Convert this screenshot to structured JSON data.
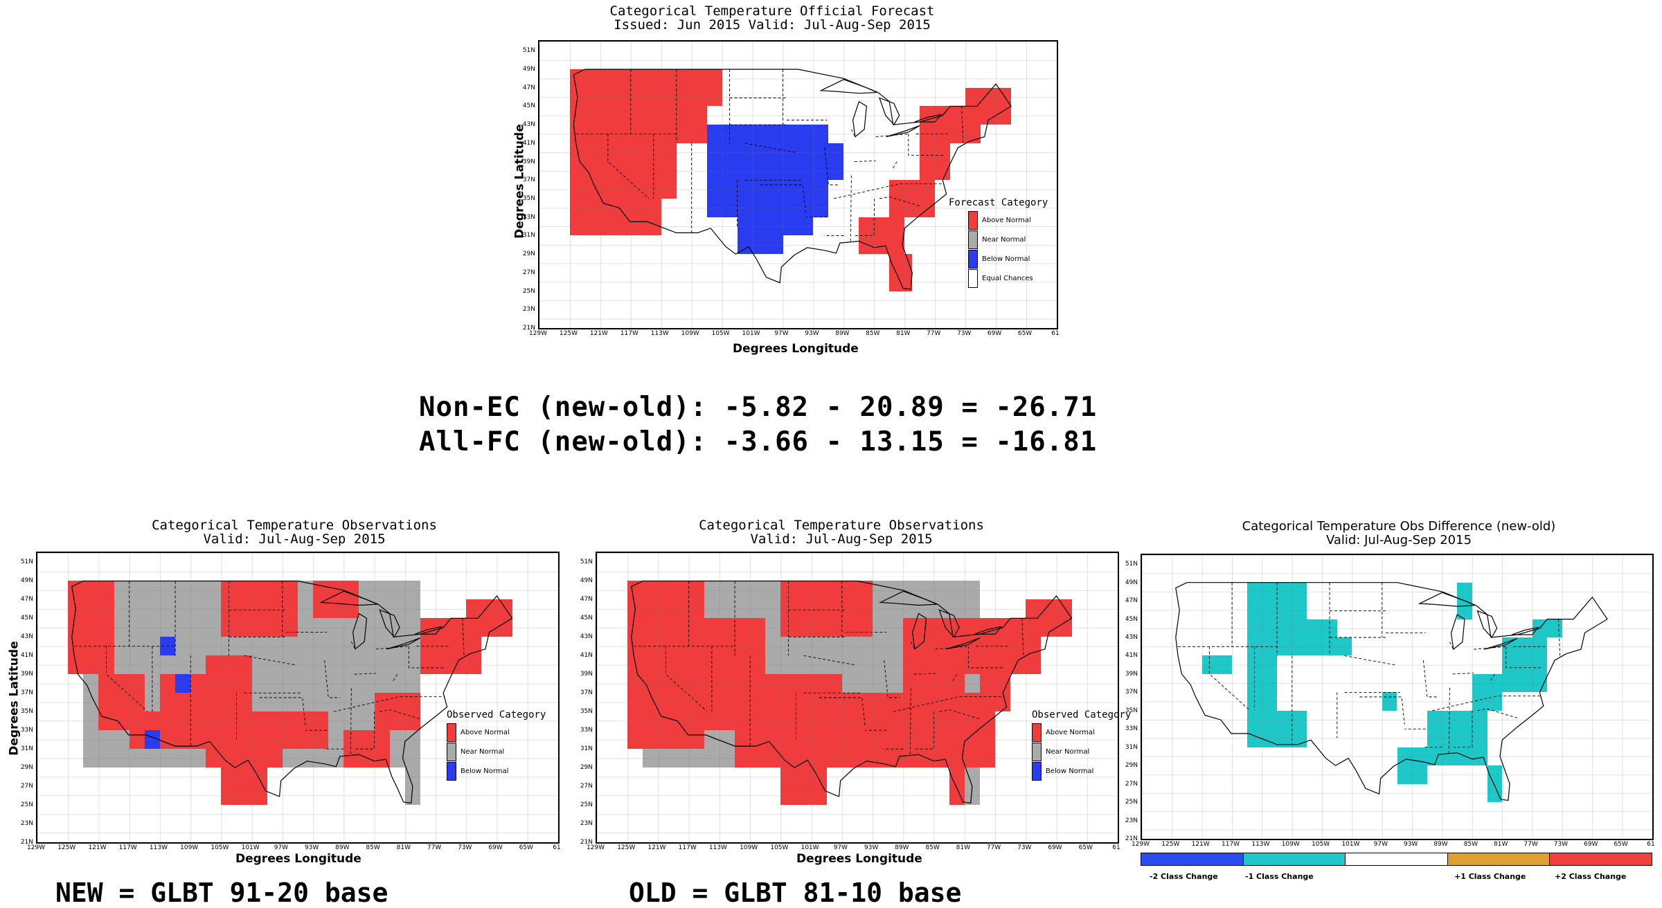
{
  "top_panel": {
    "title": "Categorical Temperature Official Forecast",
    "subtitle": "Issued: Jun 2015 Valid: Jul-Aug-Sep 2015",
    "xlabel": "Degrees Longitude",
    "ylabel": "Degrees Latitude",
    "legend_title": "Forecast Category",
    "legend": [
      "Above Normal",
      "Near Normal",
      "Below Normal",
      "Equal Chances"
    ]
  },
  "stats": {
    "line1": "Non-EC (new-old): -5.82 - 20.89 = -26.71",
    "line2": "All-FC (new-old): -3.66 - 13.15 = -16.81"
  },
  "left_panel": {
    "title": "Categorical Temperature Observations",
    "subtitle": "Valid: Jul-Aug-Sep 2015",
    "xlabel": "Degrees Longitude",
    "ylabel": "Degrees Latitude",
    "legend_title": "Observed Category",
    "legend": [
      "Above Normal",
      "Near Normal",
      "Below Normal"
    ],
    "footnote": "NEW = GLBT 91-20 base"
  },
  "mid_panel": {
    "title": "Categorical Temperature Observations",
    "subtitle": "Valid: Jul-Aug-Sep 2015",
    "xlabel": "Degrees Longitude",
    "ylabel": "Degrees Latitude",
    "legend_title": "Observed Category",
    "legend": [
      "Above Normal",
      "Near Normal",
      "Below Normal"
    ],
    "footnote": "OLD = GLBT 81-10 base"
  },
  "right_panel": {
    "title": "Categorical Temperature Obs Difference (new-old)",
    "subtitle": "Valid: Jul-Aug-Sep 2015",
    "legend": [
      "-2 Class Change",
      "-1 Class Change",
      "+1 Class Change",
      "+2 Class Change"
    ]
  },
  "axes": {
    "lat_ticks": [
      "51N",
      "49N",
      "47N",
      "45N",
      "43N",
      "41N",
      "39N",
      "37N",
      "35N",
      "33N",
      "31N",
      "29N",
      "27N",
      "25N",
      "23N",
      "21N"
    ],
    "lon_ticks": [
      "129W",
      "125W",
      "121W",
      "117W",
      "113W",
      "109W",
      "105W",
      "101W",
      "97W",
      "93W",
      "89W",
      "85W",
      "81W",
      "77W",
      "73W",
      "69W",
      "65W",
      "61"
    ],
    "lon_range": [
      -129,
      -61
    ],
    "lat_range": [
      21,
      52
    ]
  },
  "colors": {
    "above": "#f03c3c",
    "near": "#aaaaaa",
    "below": "#2a3cf0",
    "ec": "#ffffff",
    "minus2": "#2a4cf0",
    "minus1": "#1ec8c8",
    "zero": "#ffffff",
    "plus1": "#e0a030",
    "plus2": "#f04040"
  },
  "regions": {
    "forecast": [
      {
        "cat": "above",
        "lon": [
          -125,
          -117
        ],
        "lat": [
          31,
          49
        ]
      },
      {
        "cat": "above",
        "lon": [
          -117,
          -111
        ],
        "lat": [
          35,
          49
        ]
      },
      {
        "cat": "above",
        "lon": [
          -111,
          -107
        ],
        "lat": [
          41,
          49
        ]
      },
      {
        "cat": "above",
        "lon": [
          -117,
          -113
        ],
        "lat": [
          31,
          35
        ]
      },
      {
        "cat": "above",
        "lon": [
          -107,
          -105
        ],
        "lat": [
          45,
          49
        ]
      },
      {
        "cat": "below",
        "lon": [
          -107,
          -91
        ],
        "lat": [
          33,
          43
        ]
      },
      {
        "cat": "below",
        "lon": [
          -103,
          -97
        ],
        "lat": [
          29,
          33
        ]
      },
      {
        "cat": "below",
        "lon": [
          -97,
          -93
        ],
        "lat": [
          31,
          33
        ]
      },
      {
        "cat": "below",
        "lon": [
          -91,
          -89
        ],
        "lat": [
          37,
          41
        ]
      },
      {
        "cat": "above",
        "lon": [
          -79,
          -71
        ],
        "lat": [
          41,
          45
        ]
      },
      {
        "cat": "above",
        "lon": [
          -73,
          -67
        ],
        "lat": [
          43,
          47
        ]
      },
      {
        "cat": "above",
        "lon": [
          -79,
          -75
        ],
        "lat": [
          37,
          41
        ]
      },
      {
        "cat": "above",
        "lon": [
          -83,
          -77
        ],
        "lat": [
          33,
          37
        ]
      },
      {
        "cat": "above",
        "lon": [
          -87,
          -81
        ],
        "lat": [
          29,
          33
        ]
      },
      {
        "cat": "above",
        "lon": [
          -83,
          -80
        ],
        "lat": [
          25,
          29
        ]
      }
    ],
    "obs_new": [
      {
        "cat": "near",
        "lon": [
          -123,
          -79
        ],
        "lat": [
          29,
          49
        ]
      },
      {
        "cat": "near",
        "lon": [
          -81,
          -79
        ],
        "lat": [
          25,
          29
        ]
      },
      {
        "cat": "above",
        "lon": [
          -125,
          -119
        ],
        "lat": [
          39,
          49
        ]
      },
      {
        "cat": "above",
        "lon": [
          -121,
          -115
        ],
        "lat": [
          33,
          39
        ]
      },
      {
        "cat": "above",
        "lon": [
          -117,
          -113
        ],
        "lat": [
          31,
          35
        ]
      },
      {
        "cat": "above",
        "lon": [
          -113,
          -105
        ],
        "lat": [
          31,
          39
        ]
      },
      {
        "cat": "above",
        "lon": [
          -107,
          -97
        ],
        "lat": [
          29,
          35
        ]
      },
      {
        "cat": "above",
        "lon": [
          -105,
          -99
        ],
        "lat": [
          25,
          29
        ]
      },
      {
        "cat": "above",
        "lon": [
          -107,
          -101
        ],
        "lat": [
          35,
          41
        ]
      },
      {
        "cat": "above",
        "lon": [
          -105,
          -95
        ],
        "lat": [
          43,
          49
        ]
      },
      {
        "cat": "above",
        "lon": [
          -97,
          -91
        ],
        "lat": [
          31,
          35
        ]
      },
      {
        "cat": "above",
        "lon": [
          -89,
          -83
        ],
        "lat": [
          29,
          33
        ]
      },
      {
        "cat": "above",
        "lon": [
          -85,
          -79
        ],
        "lat": [
          33,
          37
        ]
      },
      {
        "cat": "above",
        "lon": [
          -79,
          -71
        ],
        "lat": [
          39,
          45
        ]
      },
      {
        "cat": "above",
        "lon": [
          -73,
          -67
        ],
        "lat": [
          43,
          47
        ]
      },
      {
        "cat": "above",
        "lon": [
          -93,
          -87
        ],
        "lat": [
          45,
          49
        ]
      },
      {
        "cat": "below",
        "lon": [
          -113,
          -111
        ],
        "lat": [
          41,
          43
        ]
      },
      {
        "cat": "below",
        "lon": [
          -111,
          -109
        ],
        "lat": [
          37,
          39
        ]
      },
      {
        "cat": "below",
        "lon": [
          -115,
          -113
        ],
        "lat": [
          31,
          33
        ]
      }
    ],
    "obs_old": [
      {
        "cat": "near",
        "lon": [
          -123,
          -79
        ],
        "lat": [
          29,
          49
        ]
      },
      {
        "cat": "near",
        "lon": [
          -81,
          -79
        ],
        "lat": [
          25,
          29
        ]
      },
      {
        "cat": "above",
        "lon": [
          -125,
          -115
        ],
        "lat": [
          31,
          49
        ]
      },
      {
        "cat": "above",
        "lon": [
          -115,
          -107
        ],
        "lat": [
          33,
          45
        ]
      },
      {
        "cat": "above",
        "lon": [
          -111,
          -97
        ],
        "lat": [
          29,
          39
        ]
      },
      {
        "cat": "above",
        "lon": [
          -105,
          -99
        ],
        "lat": [
          25,
          29
        ]
      },
      {
        "cat": "above",
        "lon": [
          -105,
          -93
        ],
        "lat": [
          43,
          49
        ]
      },
      {
        "cat": "above",
        "lon": [
          -97,
          -77
        ],
        "lat": [
          29,
          37
        ]
      },
      {
        "cat": "above",
        "lon": [
          -89,
          -81
        ],
        "lat": [
          37,
          45
        ]
      },
      {
        "cat": "above",
        "lon": [
          -81,
          -71
        ],
        "lat": [
          39,
          45
        ]
      },
      {
        "cat": "above",
        "lon": [
          -73,
          -67
        ],
        "lat": [
          43,
          47
        ]
      },
      {
        "cat": "above",
        "lon": [
          -79,
          -75
        ],
        "lat": [
          35,
          39
        ]
      },
      {
        "cat": "above",
        "lon": [
          -83,
          -81
        ],
        "lat": [
          25,
          29
        ]
      }
    ],
    "diff": [
      {
        "cat": "minus1",
        "lon": [
          -121,
          -117
        ],
        "lat": [
          39,
          41
        ]
      },
      {
        "cat": "minus1",
        "lon": [
          -115,
          -107
        ],
        "lat": [
          41,
          49
        ]
      },
      {
        "cat": "minus1",
        "lon": [
          -115,
          -111
        ],
        "lat": [
          31,
          41
        ]
      },
      {
        "cat": "minus1",
        "lon": [
          -111,
          -107
        ],
        "lat": [
          31,
          35
        ]
      },
      {
        "cat": "minus1",
        "lon": [
          -107,
          -103
        ],
        "lat": [
          41,
          45
        ]
      },
      {
        "cat": "minus1",
        "lon": [
          -105,
          -101
        ],
        "lat": [
          41,
          43
        ]
      },
      {
        "cat": "minus1",
        "lon": [
          -97,
          -95
        ],
        "lat": [
          35,
          37
        ]
      },
      {
        "cat": "minus1",
        "lon": [
          -95,
          -91
        ],
        "lat": [
          27,
          31
        ]
      },
      {
        "cat": "minus1",
        "lon": [
          -91,
          -83
        ],
        "lat": [
          29,
          35
        ]
      },
      {
        "cat": "minus1",
        "lon": [
          -85,
          -81
        ],
        "lat": [
          35,
          39
        ]
      },
      {
        "cat": "minus1",
        "lon": [
          -81,
          -75
        ],
        "lat": [
          37,
          43
        ]
      },
      {
        "cat": "minus1",
        "lon": [
          -77,
          -73
        ],
        "lat": [
          43,
          45
        ]
      },
      {
        "cat": "minus1",
        "lon": [
          -83,
          -81
        ],
        "lat": [
          25,
          29
        ]
      },
      {
        "cat": "minus1",
        "lon": [
          -87,
          -85
        ],
        "lat": [
          45,
          49
        ]
      }
    ]
  }
}
